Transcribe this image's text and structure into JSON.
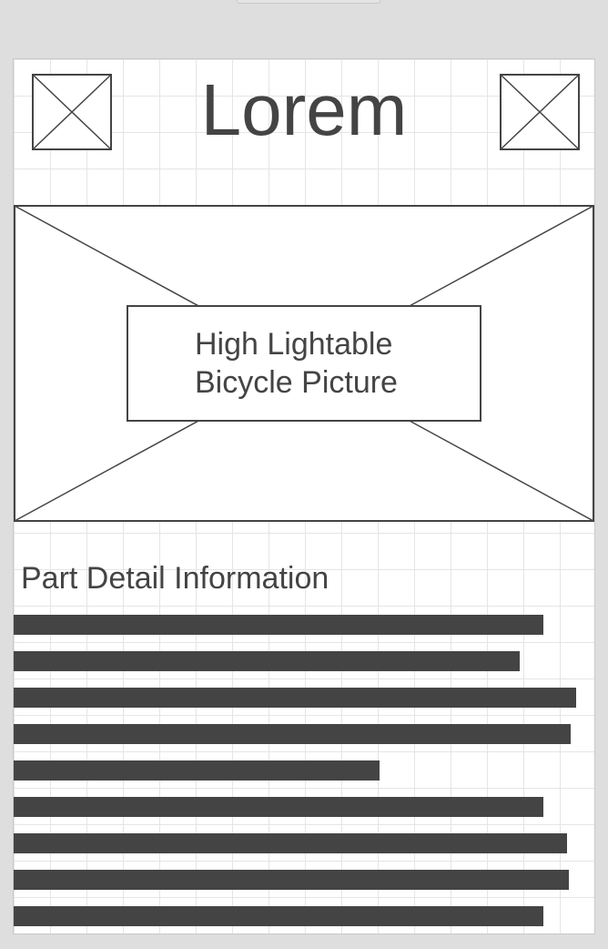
{
  "header": {
    "title": "Lorem",
    "left_icon": "placeholder-image-icon",
    "right_icon": "placeholder-image-icon"
  },
  "hero": {
    "label": "High Lightable Bicycle Picture"
  },
  "details": {
    "heading": "Part Detail Information",
    "text_line_count": 9,
    "text_line_fill": [
      0.912,
      0.871,
      0.969,
      0.96,
      0.63,
      0.912,
      0.953,
      0.956,
      0.912
    ]
  },
  "colors": {
    "background": "#dedede",
    "screen": "#ffffff",
    "ink": "#444444",
    "grid": "#e5e5e5"
  }
}
